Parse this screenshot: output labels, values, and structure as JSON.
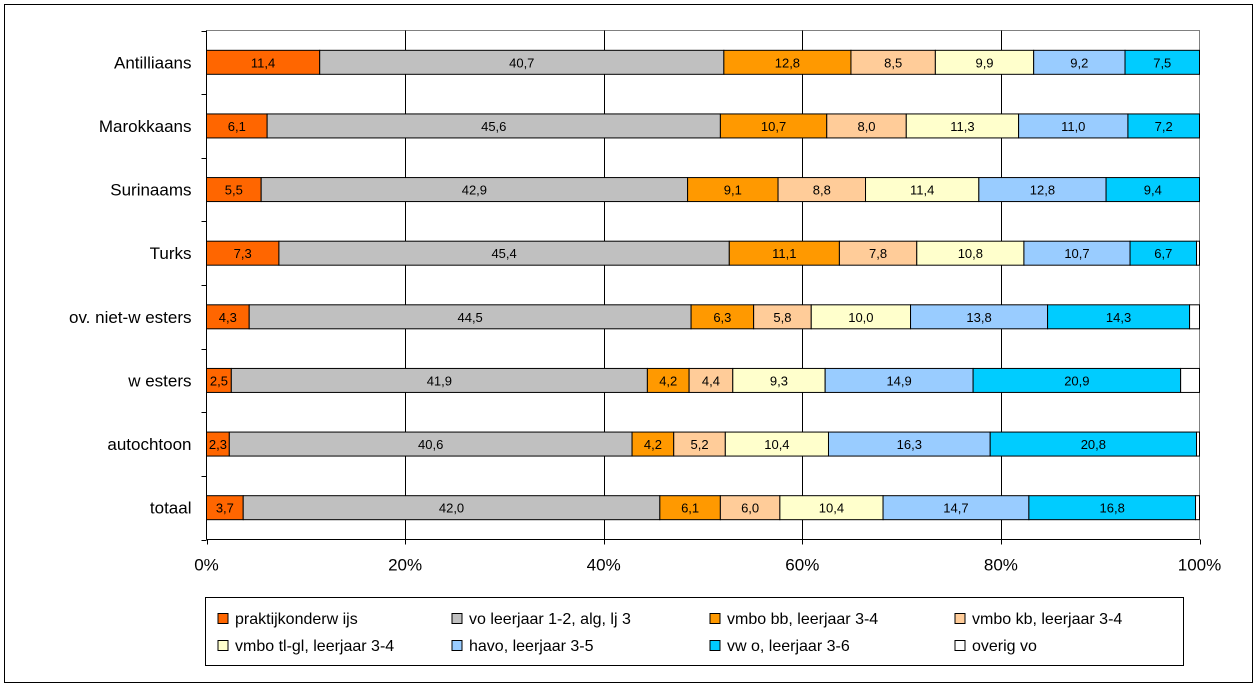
{
  "chart_data": {
    "type": "bar",
    "orientation": "horizontal",
    "stacked": "percent",
    "categories": [
      "Antilliaans",
      "Marokkaans",
      "Surinaams",
      "Turks",
      "ov. niet-w esters",
      "w esters",
      "autochtoon",
      "totaal"
    ],
    "series": [
      {
        "name": "praktijkonderw ijs",
        "color": "#FF6600",
        "values": [
          11.4,
          6.1,
          5.5,
          7.3,
          4.3,
          2.5,
          2.3,
          3.7
        ],
        "labels": [
          "11,4",
          "6,1",
          "5,5",
          "7,3",
          "4,3",
          "2,5",
          "2,3",
          "3,7"
        ]
      },
      {
        "name": "vo leerjaar 1-2, alg, lj 3",
        "color": "#C0C0C0",
        "values": [
          40.7,
          45.6,
          42.9,
          45.4,
          44.5,
          41.9,
          40.6,
          42.0
        ],
        "labels": [
          "40,7",
          "45,6",
          "42,9",
          "45,4",
          "44,5",
          "41,9",
          "40,6",
          "42,0"
        ]
      },
      {
        "name": "vmbo bb, leerjaar 3-4",
        "color": "#FF9900",
        "values": [
          12.8,
          10.7,
          9.1,
          11.1,
          6.3,
          4.2,
          4.2,
          6.1
        ],
        "labels": [
          "12,8",
          "10,7",
          "9,1",
          "11,1",
          "6,3",
          "4,2",
          "4,2",
          "6,1"
        ]
      },
      {
        "name": "vmbo kb, leerjaar 3-4",
        "color": "#FFCC99",
        "values": [
          8.5,
          8.0,
          8.8,
          7.8,
          5.8,
          4.4,
          5.2,
          6.0
        ],
        "labels": [
          "8,5",
          "8,0",
          "8,8",
          "7,8",
          "5,8",
          "4,4",
          "5,2",
          "6,0"
        ]
      },
      {
        "name": "vmbo tl-gl, leerjaar 3-4",
        "color": "#FFFFCC",
        "values": [
          9.9,
          11.3,
          11.4,
          10.8,
          10.0,
          9.3,
          10.4,
          10.4
        ],
        "labels": [
          "9,9",
          "11,3",
          "11,4",
          "10,8",
          "10,0",
          "9,3",
          "10,4",
          "10,4"
        ]
      },
      {
        "name": "havo, leerjaar 3-5",
        "color": "#99CCFF",
        "values": [
          9.2,
          11.0,
          12.8,
          10.7,
          13.8,
          14.9,
          16.3,
          14.7
        ],
        "labels": [
          "9,2",
          "11,0",
          "12,8",
          "10,7",
          "13,8",
          "14,9",
          "16,3",
          "14,7"
        ]
      },
      {
        "name": "vw o, leerjaar 3-6",
        "color": "#00CCFF",
        "values": [
          7.5,
          7.2,
          9.4,
          6.7,
          14.3,
          20.9,
          20.8,
          16.8
        ],
        "labels": [
          "7,5",
          "7,2",
          "9,4",
          "6,7",
          "14,3",
          "20,9",
          "20,8",
          "16,8"
        ]
      },
      {
        "name": "overig vo",
        "color": "#FFFFFF",
        "values": [
          0,
          0,
          0,
          0.3,
          1.0,
          1.9,
          0.3,
          0.4
        ],
        "labels": [
          "",
          "",
          "",
          "",
          "",
          "",
          "",
          ""
        ]
      }
    ],
    "x_ticks": [
      "0%",
      "20%",
      "40%",
      "60%",
      "80%",
      "100%"
    ],
    "xlim": [
      0,
      100
    ],
    "grid": "vertical",
    "legend_position": "bottom"
  }
}
